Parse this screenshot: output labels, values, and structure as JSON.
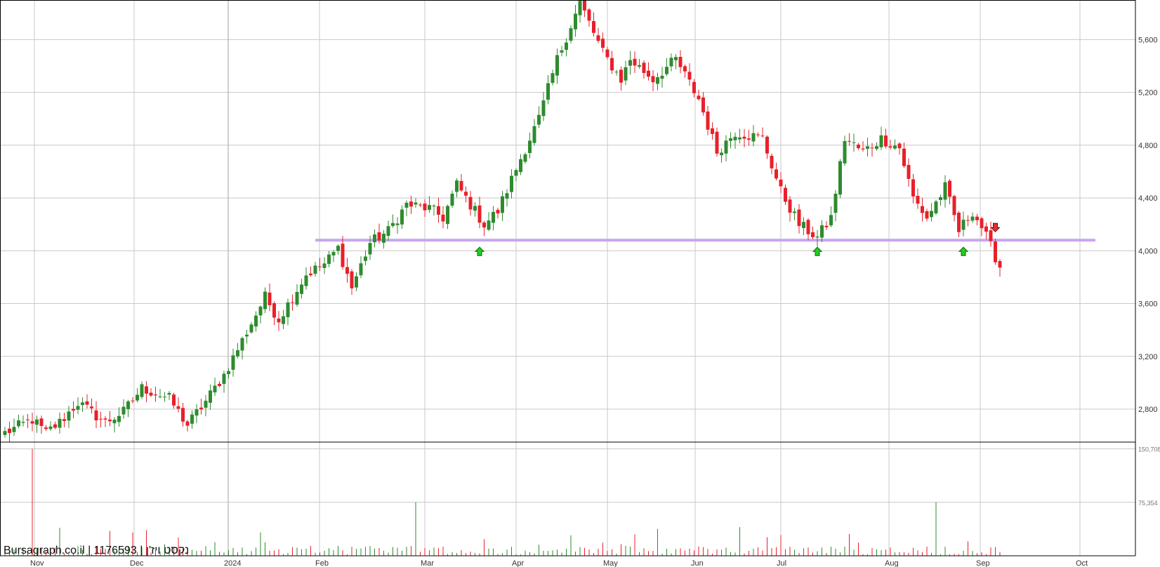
{
  "watermark": "Bursagraph.co.il | 1176593 | נקסט ויז'ן",
  "colors": {
    "up": "#2e8b2e",
    "down": "#e8202a",
    "grid": "#c8c8c8",
    "support": "#c9a5f0",
    "arrow_up": "#22cc22",
    "arrow_down": "#e03030"
  },
  "chart_data": {
    "type": "candlestick",
    "y_ticks": [
      2800,
      3200,
      3600,
      4000,
      4400,
      4800,
      5200,
      5600
    ],
    "y_tick_labels": [
      "2,800",
      "3,200",
      "3,600",
      "4,000",
      "4,400",
      "4,800",
      "5,200",
      "5,600"
    ],
    "ylim": [
      2550,
      5900
    ],
    "x_labels": [
      "Nov",
      "Dec",
      "2024",
      "Feb",
      "Mar",
      "Apr",
      "May",
      "Jun",
      "Jul",
      "Aug",
      "Sep",
      "Oct"
    ],
    "support_level": 4080,
    "volume_ticks": [
      75354,
      150708
    ],
    "volume_tick_labels": [
      "75,354",
      "150,708"
    ],
    "signals": [
      {
        "type": "up",
        "index": 104
      },
      {
        "type": "up",
        "index": 178
      },
      {
        "type": "up",
        "index": 210
      },
      {
        "type": "down",
        "index": 217
      }
    ],
    "waypoints": [
      [
        0,
        2620
      ],
      [
        6,
        2720
      ],
      [
        9,
        2620
      ],
      [
        12,
        2700
      ],
      [
        16,
        2850
      ],
      [
        22,
        2700
      ],
      [
        26,
        2780
      ],
      [
        30,
        2960
      ],
      [
        36,
        2880
      ],
      [
        40,
        2680
      ],
      [
        44,
        2860
      ],
      [
        48,
        3060
      ],
      [
        52,
        3320
      ],
      [
        57,
        3650
      ],
      [
        60,
        3480
      ],
      [
        66,
        3820
      ],
      [
        70,
        3900
      ],
      [
        73,
        4020
      ],
      [
        76,
        3720
      ],
      [
        80,
        4060
      ],
      [
        84,
        4150
      ],
      [
        88,
        4350
      ],
      [
        93,
        4320
      ],
      [
        96,
        4250
      ],
      [
        99,
        4500
      ],
      [
        102,
        4350
      ],
      [
        105,
        4200
      ],
      [
        108,
        4300
      ],
      [
        113,
        4700
      ],
      [
        117,
        5000
      ],
      [
        121,
        5450
      ],
      [
        126,
        5880
      ],
      [
        131,
        5500
      ],
      [
        135,
        5300
      ],
      [
        137,
        5450
      ],
      [
        142,
        5300
      ],
      [
        147,
        5450
      ],
      [
        152,
        5150
      ],
      [
        156,
        4750
      ],
      [
        160,
        4900
      ],
      [
        166,
        4850
      ],
      [
        170,
        4450
      ],
      [
        174,
        4200
      ],
      [
        178,
        4100
      ],
      [
        181,
        4250
      ],
      [
        184,
        4850
      ],
      [
        188,
        4750
      ],
      [
        192,
        4850
      ],
      [
        196,
        4780
      ],
      [
        199,
        4400
      ],
      [
        202,
        4250
      ],
      [
        206,
        4480
      ],
      [
        209,
        4150
      ],
      [
        212,
        4300
      ],
      [
        214,
        4180
      ],
      [
        218,
        3880
      ]
    ],
    "volume_spikes": [
      {
        "index": 6,
        "value": 150708
      },
      {
        "index": 90,
        "value": 75354
      },
      {
        "index": 204,
        "value": 75354
      }
    ]
  }
}
